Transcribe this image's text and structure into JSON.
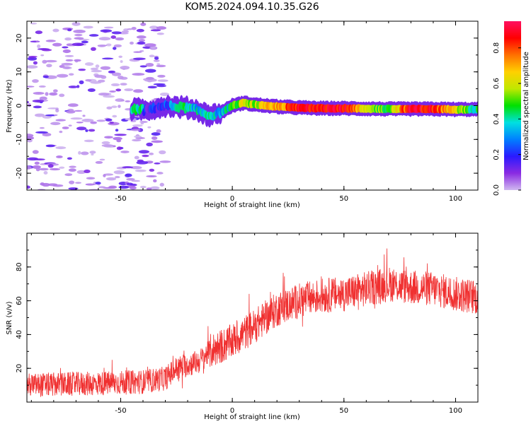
{
  "figure": {
    "title": "KOM5.2024.094.10.35.G26"
  },
  "chart_data": [
    {
      "type": "heatmap",
      "xlabel": "Height of straight line (km)",
      "ylabel": "Frequency (Hz)",
      "xlim": [
        -92,
        110
      ],
      "ylim": [
        -25,
        25
      ],
      "x_ticks": [
        -50,
        0,
        50,
        100
      ],
      "y_ticks": [
        -20,
        -10,
        0,
        10,
        20
      ],
      "grid": false,
      "colorbar": {
        "label": "Normalized spectral amplitude",
        "range": [
          0,
          0.95
        ],
        "ticks": [
          0.0,
          0.2,
          0.4,
          0.6,
          0.8
        ],
        "colormap": [
          "#d0b8f0",
          "#8a2be2",
          "#2a1aff",
          "#0080ff",
          "#00e0e0",
          "#00e000",
          "#c0e800",
          "#ffd000",
          "#ff7000",
          "#ff0000",
          "#ff1060"
        ]
      },
      "ridge": {
        "description_points": [
          {
            "x": -40,
            "y": -1.5,
            "amp": 0.15
          },
          {
            "x": -30,
            "y": 0.0,
            "amp": 0.2
          },
          {
            "x": -22,
            "y": -0.5,
            "amp": 0.45
          },
          {
            "x": -17,
            "y": -1.0,
            "amp": 0.35
          },
          {
            "x": -10,
            "y": -3.0,
            "amp": 0.4
          },
          {
            "x": -5,
            "y": -2.0,
            "amp": 0.3
          },
          {
            "x": 0,
            "y": 0.0,
            "amp": 0.45
          },
          {
            "x": 5,
            "y": 0.8,
            "amp": 0.6
          },
          {
            "x": 10,
            "y": 0.3,
            "amp": 0.55
          },
          {
            "x": 20,
            "y": -0.3,
            "amp": 0.7
          },
          {
            "x": 30,
            "y": -0.6,
            "amp": 0.85
          },
          {
            "x": 40,
            "y": -0.8,
            "amp": 0.9
          },
          {
            "x": 50,
            "y": -0.8,
            "amp": 0.88
          },
          {
            "x": 60,
            "y": -0.9,
            "amp": 0.55
          },
          {
            "x": 70,
            "y": -1.0,
            "amp": 0.5
          },
          {
            "x": 80,
            "y": -1.0,
            "amp": 0.9
          },
          {
            "x": 90,
            "y": -1.0,
            "amp": 0.85
          },
          {
            "x": 100,
            "y": -1.1,
            "amp": 0.6
          },
          {
            "x": 110,
            "y": -1.1,
            "amp": 0.4
          }
        ]
      }
    },
    {
      "type": "line",
      "xlabel": "Height of straight line (km)",
      "ylabel": "SNR (v/v)",
      "xlim": [
        -92,
        110
      ],
      "ylim": [
        0,
        100
      ],
      "x_ticks": [
        -50,
        0,
        50,
        100
      ],
      "y_ticks": [
        20,
        40,
        60,
        80
      ],
      "grid": false,
      "series": [
        {
          "color": "#f03030",
          "trend_points": [
            {
              "x": -92,
              "y": 10
            },
            {
              "x": -60,
              "y": 11
            },
            {
              "x": -40,
              "y": 12
            },
            {
              "x": -30,
              "y": 14
            },
            {
              "x": -25,
              "y": 20
            },
            {
              "x": -15,
              "y": 24
            },
            {
              "x": -10,
              "y": 30
            },
            {
              "x": 0,
              "y": 36
            },
            {
              "x": 10,
              "y": 45
            },
            {
              "x": 20,
              "y": 55
            },
            {
              "x": 30,
              "y": 60
            },
            {
              "x": 40,
              "y": 63
            },
            {
              "x": 50,
              "y": 64
            },
            {
              "x": 60,
              "y": 67
            },
            {
              "x": 70,
              "y": 70
            },
            {
              "x": 80,
              "y": 68
            },
            {
              "x": 90,
              "y": 67
            },
            {
              "x": 100,
              "y": 64
            },
            {
              "x": 110,
              "y": 62
            }
          ],
          "noise_amplitude": 8
        }
      ]
    }
  ]
}
